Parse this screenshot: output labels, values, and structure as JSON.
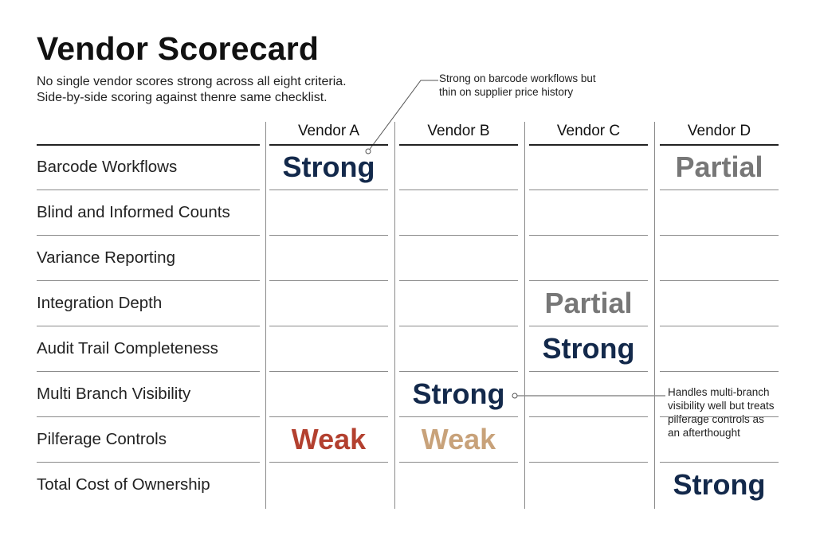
{
  "title": "Vendor Scorecard",
  "subtitle": [
    "No single vendor scores strong across all eight criteria.",
    "Side-by-side scoring against thenre same checklist."
  ],
  "annotations": [
    {
      "lines": [
        "Strong on barcode workflows but",
        "thin on supplier price history"
      ]
    },
    {
      "lines": [
        "Handles multi-branch",
        "visibility well but treats",
        "pilferage controls as",
        "an afterthought"
      ]
    }
  ],
  "vendors": [
    "Vendor A",
    "Vendor B",
    "Vendor C",
    "Vendor D"
  ],
  "criteria": [
    "Barcode Workflows",
    "Blind and Informed Counts",
    "Variance Reporting",
    "Integration Depth",
    "Audit Trail Completeness",
    "Multi Branch Visibility",
    "Pilferage Controls",
    "Total Cost of Ownership"
  ],
  "scores": [
    {
      "criterion": 0,
      "vendor": 0,
      "label": "Strong",
      "color": "#13294b"
    },
    {
      "criterion": 0,
      "vendor": 3,
      "label": "Partial",
      "color": "#777777"
    },
    {
      "criterion": 3,
      "vendor": 2,
      "label": "Partial",
      "color": "#777777"
    },
    {
      "criterion": 4,
      "vendor": 2,
      "label": "Strong",
      "color": "#13294b"
    },
    {
      "criterion": 5,
      "vendor": 1,
      "label": "Strong",
      "color": "#13294b"
    },
    {
      "criterion": 6,
      "vendor": 0,
      "label": "Weak",
      "color": "#b3402f"
    },
    {
      "criterion": 6,
      "vendor": 1,
      "label": "Weak",
      "color": "#c8a27a"
    },
    {
      "criterion": 7,
      "vendor": 3,
      "label": "Strong",
      "color": "#13294b"
    }
  ]
}
